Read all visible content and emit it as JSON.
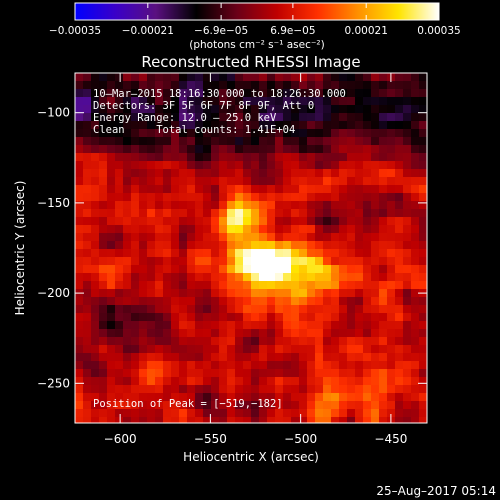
{
  "chart_data": {
    "type": "heatmap",
    "title": "Reconstructed RHESSI Image",
    "xlabel": "Heliocentric X (arcsec)",
    "ylabel": "Heliocentric Y (arcsec)",
    "xlim": [
      -625,
      -430
    ],
    "ylim": [
      -272,
      -78
    ],
    "x_ticks": [
      -600,
      -550,
      -500,
      -450
    ],
    "y_ticks": [
      -100,
      -150,
      -200,
      -250
    ],
    "x_tick_labels": [
      "−600",
      "−550",
      "−500",
      "−450"
    ],
    "y_tick_labels": [
      "−100",
      "−150",
      "−200",
      "−250"
    ],
    "colorbar": {
      "range": [
        -0.00035,
        0.00035
      ],
      "ticks": [
        -0.00035,
        -0.00021,
        -6.9e-05,
        6.9e-05,
        0.00021,
        0.00035
      ],
      "tick_labels": [
        "−0.00035",
        "−0.00021",
        "−6.9e−05",
        "6.9e−05",
        "0.00021",
        "0.00035"
      ],
      "unit_text": "(photons cm⁻² s⁻¹ asec⁻²)",
      "colors": [
        "#0000ff",
        "#3a00c8",
        "#5a1080",
        "#000000",
        "#6a0018",
        "#c00000",
        "#ff3000",
        "#ff9000",
        "#ffe400",
        "#ffffff"
      ]
    },
    "peak_position": [
      -519,
      -182
    ],
    "annotations": {
      "time": "10–Mar–2015 18:16:30.000 to 18:26:30.000",
      "detectors": "Detectors: 3F 5F 6F 7F 8F 9F, Att 0",
      "energy": "Energy Range: 12.0 – 25.0 keV",
      "clean": "Clean     Total counts: 1.41E+04",
      "peak": "Position of Peak = [−519,−182]"
    },
    "timestamp": "25–Aug–2017 05:14"
  }
}
